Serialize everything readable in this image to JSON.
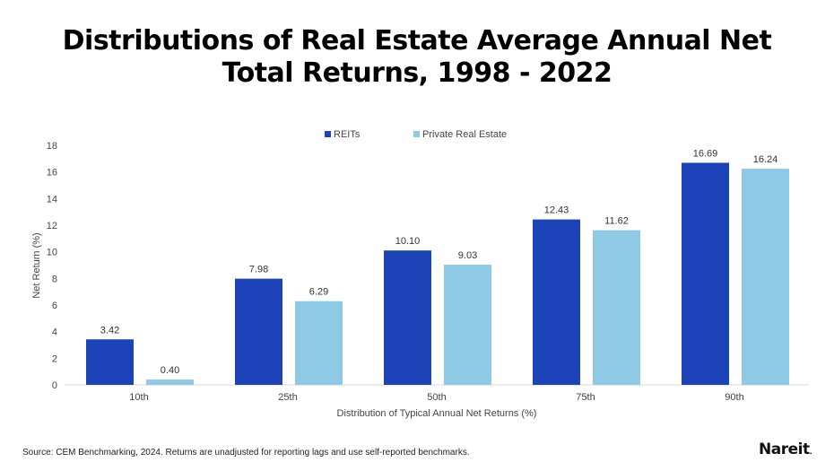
{
  "title_lines": [
    "Distributions of Real Estate Average Annual Net",
    "Total Returns, 1998 - 2022"
  ],
  "source": "Source: CEM Benchmarking, 2024. Returns are unadjusted for reporting lags and use self-reported benchmarks.",
  "logo": "Nareit.",
  "chart_data": {
    "type": "bar",
    "categories": [
      "10th",
      "25th",
      "50th",
      "75th",
      "90th"
    ],
    "series": [
      {
        "name": "REITs",
        "color": "#1c44b8",
        "values": [
          3.42,
          7.98,
          10.1,
          12.43,
          16.69
        ]
      },
      {
        "name": "Private Real Estate",
        "color": "#8ecae6",
        "values": [
          0.4,
          6.29,
          9.03,
          11.62,
          16.24
        ]
      }
    ],
    "xlabel": "Distribution of Typical Annual Net Returns (%)",
    "ylabel": "Net Return (%)",
    "ylim": [
      0,
      18
    ],
    "yticks": [
      0,
      2,
      4,
      6,
      8,
      10,
      12,
      14,
      16,
      18
    ],
    "grid": false,
    "legend": "top-center"
  }
}
